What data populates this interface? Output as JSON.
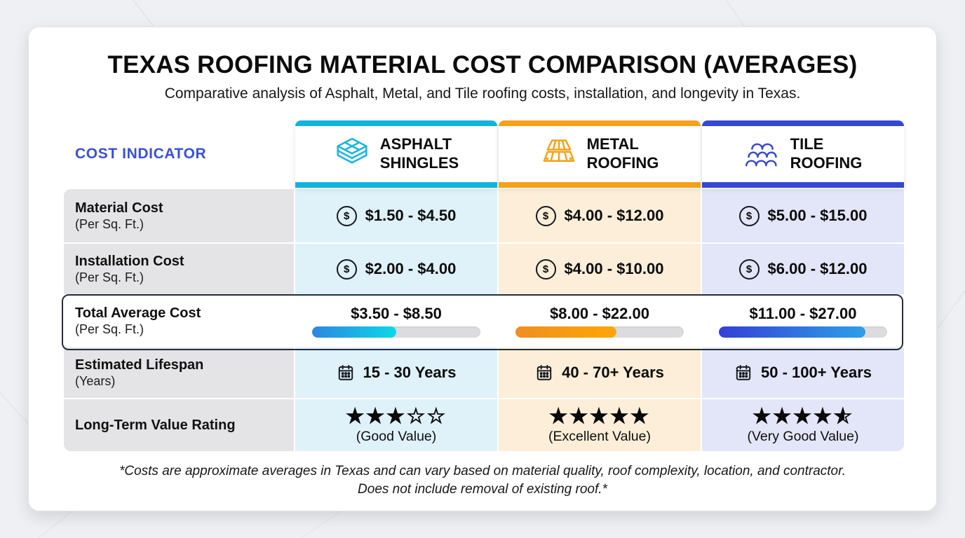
{
  "page": {
    "title": "TEXAS ROOFING MATERIAL COST COMPARISON (AVERAGES)",
    "subtitle": "Comparative analysis of Asphalt, Metal, and Tile roofing costs, installation, and longevity in Texas.",
    "footnote_line1": "*Costs are approximate averages in Texas and can vary based on material quality, roof complexity, location, and contractor.",
    "footnote_line2": "Does not include removal of existing roof.*"
  },
  "icons": {
    "dollar_glyph": "$"
  },
  "table": {
    "corner_label": "COST INDICATOR",
    "columns": [
      {
        "id": "asphalt",
        "label_lines": [
          "ASPHALT",
          "SHINGLES"
        ],
        "accent": "#12b3de",
        "cell_bg": "#dff1f9"
      },
      {
        "id": "metal",
        "label_lines": [
          "METAL",
          "ROOFING"
        ],
        "accent": "#f5a11b",
        "cell_bg": "#fceed8"
      },
      {
        "id": "tile",
        "label_lines": [
          "TILE",
          "ROOFING"
        ],
        "accent": "#3447d6",
        "cell_bg": "#e3e6f8"
      }
    ],
    "rows": [
      {
        "label": "Material Cost",
        "sublabel": "(Per Sq. Ft.)",
        "values": [
          "$1.50 - $4.50",
          "$4.00 - $12.00",
          "$5.00 - $15.00"
        ]
      },
      {
        "label": "Installation Cost",
        "sublabel": "(Per Sq. Ft.)",
        "values": [
          "$2.00 - $4.00",
          "$4.00 - $10.00",
          "$6.00 - $12.00"
        ]
      },
      {
        "label": "Total Average Cost",
        "sublabel": "(Per Sq. Ft.)",
        "highlighted": true,
        "values": [
          "$3.50 - $8.50",
          "$8.00 - $22.00",
          "$11.00 - $27.00"
        ],
        "bars": [
          {
            "percent": 50,
            "from": "#2e86e0",
            "to": "#0bd8e8"
          },
          {
            "percent": 60,
            "from": "#f08e20",
            "to": "#ffa606"
          },
          {
            "percent": 87,
            "from": "#3340d6",
            "to": "#2e9fe8"
          }
        ]
      },
      {
        "label": "Estimated Lifespan",
        "sublabel": "(Years)",
        "values": [
          "15 - 30 Years",
          "40 - 70+ Years",
          "50 - 100+ Years"
        ]
      },
      {
        "label": "Long-Term Value Rating",
        "sublabel": "",
        "stars": [
          3,
          5,
          4.5
        ],
        "captions": [
          "(Good Value)",
          "(Excellent Value)",
          "(Very Good Value)"
        ]
      }
    ]
  },
  "chart_data": {
    "type": "table",
    "title": "TEXAS ROOFING MATERIAL COST COMPARISON (AVERAGES)",
    "subtitle": "Comparative analysis of Asphalt, Metal, and Tile roofing costs, installation, and longevity in Texas.",
    "columns": [
      "COST INDICATOR",
      "ASPHALT SHINGLES",
      "METAL ROOFING",
      "TILE ROOFING"
    ],
    "rows": [
      [
        "Material Cost (Per Sq. Ft.)",
        "$1.50 - $4.50",
        "$4.00 - $12.00",
        "$5.00 - $15.00"
      ],
      [
        "Installation Cost (Per Sq. Ft.)",
        "$2.00 - $4.00",
        "$4.00 - $10.00",
        "$6.00 - $12.00"
      ],
      [
        "Total Average Cost (Per Sq. Ft.)",
        "$3.50 - $8.50",
        "$8.00 - $22.00",
        "$11.00 - $27.00"
      ],
      [
        "Estimated Lifespan (Years)",
        "15 - 30 Years",
        "40 - 70+ Years",
        "50 - 100+ Years"
      ],
      [
        "Long-Term Value Rating",
        "3 of 5 stars (Good Value)",
        "5 of 5 stars (Excellent Value)",
        "4.5 of 5 stars (Very Good Value)"
      ]
    ],
    "total_cost_bar_fill_percent": [
      50,
      60,
      87
    ],
    "footnote": "*Costs are approximate averages in Texas and can vary based on material quality, roof complexity, location, and contractor. Does not include removal of existing roof.*"
  }
}
